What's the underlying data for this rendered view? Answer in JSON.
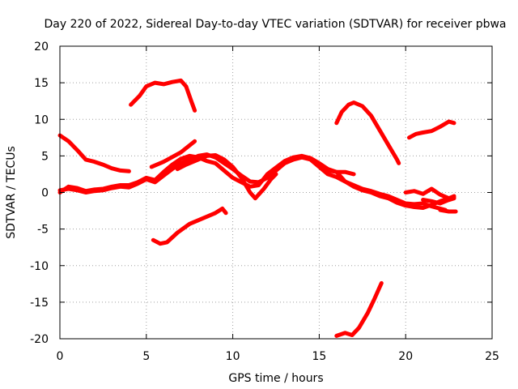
{
  "chart_data": {
    "type": "line",
    "title": "Day 220 of 2022, Sidereal Day-to-day VTEC variation (SDTVAR) for receiver pbwa",
    "xlabel": "GPS time / hours",
    "ylabel": "SDTVAR / TECUs",
    "xlim": [
      0,
      25
    ],
    "ylim": [
      -20,
      20
    ],
    "xticks": [
      0,
      5,
      10,
      15,
      20,
      25
    ],
    "yticks": [
      -20,
      -15,
      -10,
      -5,
      0,
      5,
      10,
      15,
      20
    ],
    "xtick_labels": [
      "0",
      "5",
      "10",
      "15",
      "20",
      "25"
    ],
    "ytick_labels": [
      "-20",
      "-15",
      "-10",
      "-5",
      "0",
      "5",
      "10",
      "15",
      "20"
    ],
    "grid": true,
    "color": "#ff0000",
    "series": [
      {
        "name": "trace-1",
        "points": [
          [
            0,
            7.8
          ],
          [
            0.5,
            7
          ],
          [
            1,
            5.8
          ],
          [
            1.5,
            4.5
          ],
          [
            2,
            4.2
          ],
          [
            2.5,
            3.8
          ],
          [
            3,
            3.3
          ],
          [
            3.5,
            3
          ],
          [
            4,
            2.9
          ]
        ]
      },
      {
        "name": "trace-2",
        "points": [
          [
            0,
            0.3
          ],
          [
            0.5,
            0.5
          ],
          [
            1,
            0.3
          ],
          [
            1.5,
            0
          ],
          [
            2,
            0.2
          ],
          [
            2.5,
            0.3
          ],
          [
            3,
            0.6
          ],
          [
            3.5,
            0.8
          ],
          [
            4,
            0.7
          ],
          [
            4.5,
            1.2
          ],
          [
            5,
            1.8
          ],
          [
            5.5,
            1.4
          ],
          [
            6,
            2.3
          ],
          [
            6.5,
            3.2
          ],
          [
            7,
            4
          ],
          [
            7.5,
            4.5
          ],
          [
            8,
            5
          ],
          [
            8.5,
            5.2
          ],
          [
            9,
            4.8
          ],
          [
            9.5,
            4
          ],
          [
            10,
            3.2
          ],
          [
            10.5,
            2.3
          ],
          [
            11,
            1.5
          ],
          [
            11.5,
            1.4
          ],
          [
            12,
            2
          ],
          [
            12.5,
            3
          ],
          [
            13,
            4
          ],
          [
            13.5,
            4.5
          ],
          [
            14,
            4.8
          ],
          [
            14.5,
            4.5
          ],
          [
            15,
            3.5
          ],
          [
            15.5,
            2.5
          ],
          [
            16,
            2.1
          ],
          [
            16.5,
            1.5
          ],
          [
            17,
            0.8
          ],
          [
            17.5,
            0.3
          ],
          [
            18,
            0
          ],
          [
            18.5,
            -0.5
          ],
          [
            19,
            -0.8
          ],
          [
            19.5,
            -1.4
          ],
          [
            20,
            -1.8
          ],
          [
            20.5,
            -2
          ],
          [
            21,
            -2.1
          ],
          [
            21.5,
            -1.7
          ],
          [
            22,
            -1.2
          ],
          [
            22.5,
            -0.8
          ],
          [
            22.8,
            -0.7
          ]
        ]
      },
      {
        "name": "trace-3",
        "points": [
          [
            0,
            0
          ],
          [
            0.5,
            0.8
          ],
          [
            1,
            0.6
          ],
          [
            1.5,
            0.2
          ],
          [
            2,
            0.4
          ],
          [
            2.5,
            0.5
          ],
          [
            3,
            0.8
          ],
          [
            3.5,
            1
          ],
          [
            4,
            1
          ],
          [
            4.5,
            1.4
          ],
          [
            5,
            2
          ],
          [
            5.5,
            1.7
          ],
          [
            6,
            2.8
          ],
          [
            6.5,
            3.8
          ],
          [
            7,
            4.6
          ],
          [
            7.5,
            5
          ],
          [
            8,
            4.8
          ],
          [
            8.5,
            4.3
          ],
          [
            9,
            4
          ],
          [
            9.5,
            3
          ],
          [
            10,
            2
          ],
          [
            10.5,
            1.4
          ],
          [
            11,
            0.8
          ],
          [
            11.5,
            1
          ],
          [
            12,
            2.5
          ],
          [
            12.5,
            3.4
          ],
          [
            13,
            4.3
          ],
          [
            13.5,
            4.8
          ],
          [
            14,
            5
          ],
          [
            14.5,
            4.7
          ],
          [
            15,
            4
          ],
          [
            15.5,
            3.2
          ],
          [
            16,
            2.8
          ],
          [
            16.5,
            2.8
          ],
          [
            17,
            2.5
          ]
        ]
      },
      {
        "name": "trace-4",
        "points": [
          [
            5.3,
            3.5
          ],
          [
            6,
            4.2
          ],
          [
            7,
            5.5
          ],
          [
            7.8,
            7
          ]
        ]
      },
      {
        "name": "trace-5",
        "points": [
          [
            6.8,
            3.2
          ],
          [
            7.3,
            3.8
          ],
          [
            8,
            4.5
          ],
          [
            8.5,
            5
          ],
          [
            9,
            5.1
          ],
          [
            9.5,
            4.5
          ],
          [
            10,
            3.5
          ],
          [
            10.5,
            2
          ],
          [
            11,
            0
          ],
          [
            11.3,
            -0.8
          ],
          [
            11.8,
            0.5
          ],
          [
            12.2,
            1.8
          ],
          [
            12.5,
            2.5
          ]
        ]
      },
      {
        "name": "trace-6",
        "points": [
          [
            4.1,
            12
          ],
          [
            4.6,
            13.2
          ],
          [
            5,
            14.5
          ],
          [
            5.5,
            15
          ],
          [
            6,
            14.8
          ],
          [
            6.5,
            15.1
          ],
          [
            7,
            15.3
          ],
          [
            7.3,
            14.5
          ],
          [
            7.6,
            12.5
          ],
          [
            7.8,
            11.2
          ]
        ]
      },
      {
        "name": "trace-7",
        "points": [
          [
            5.4,
            -6.5
          ],
          [
            5.8,
            -7
          ],
          [
            6.2,
            -6.8
          ],
          [
            6.8,
            -5.5
          ],
          [
            7.5,
            -4.3
          ],
          [
            8,
            -3.8
          ],
          [
            8.5,
            -3.3
          ],
          [
            9,
            -2.8
          ],
          [
            9.4,
            -2.2
          ],
          [
            9.6,
            -2.8
          ]
        ]
      },
      {
        "name": "trace-8",
        "points": [
          [
            16,
            9.5
          ],
          [
            16.3,
            11
          ],
          [
            16.7,
            12
          ],
          [
            17,
            12.3
          ],
          [
            17.5,
            11.8
          ],
          [
            18,
            10.5
          ],
          [
            18.5,
            8.5
          ],
          [
            19,
            6.5
          ],
          [
            19.5,
            4.5
          ],
          [
            19.6,
            4
          ]
        ]
      },
      {
        "name": "trace-9",
        "points": [
          [
            15.5,
            3
          ],
          [
            16,
            2.8
          ],
          [
            16.5,
            1.5
          ],
          [
            17,
            1
          ],
          [
            17.5,
            0.5
          ],
          [
            18,
            0.2
          ],
          [
            18.5,
            -0.2
          ],
          [
            19,
            -0.5
          ],
          [
            19.5,
            -1
          ],
          [
            20,
            -1.5
          ],
          [
            20.5,
            -1.6
          ],
          [
            21,
            -1.5
          ],
          [
            21.5,
            -1.9
          ],
          [
            22,
            -2.2
          ],
          [
            22.3,
            -2.4
          ]
        ]
      },
      {
        "name": "trace-10",
        "points": [
          [
            20,
            0
          ],
          [
            20.5,
            0.2
          ],
          [
            21,
            -0.2
          ],
          [
            21.5,
            0.5
          ],
          [
            22,
            -0.3
          ],
          [
            22.5,
            -0.8
          ],
          [
            22.8,
            -0.5
          ]
        ]
      },
      {
        "name": "trace-11",
        "points": [
          [
            20.2,
            7.5
          ],
          [
            20.6,
            8
          ],
          [
            21,
            8.2
          ],
          [
            21.5,
            8.4
          ],
          [
            22,
            9
          ],
          [
            22.5,
            9.7
          ],
          [
            22.8,
            9.5
          ]
        ]
      },
      {
        "name": "trace-12",
        "points": [
          [
            21,
            -1
          ],
          [
            21.5,
            -1.2
          ],
          [
            22,
            -1.5
          ],
          [
            22.4,
            -1.1
          ],
          [
            22.8,
            -0.8
          ]
        ]
      },
      {
        "name": "trace-13",
        "points": [
          [
            22,
            -2.4
          ],
          [
            22.5,
            -2.6
          ],
          [
            22.9,
            -2.6
          ]
        ]
      },
      {
        "name": "trace-14",
        "points": [
          [
            16,
            -19.6
          ],
          [
            16.5,
            -19.2
          ],
          [
            16.9,
            -19.5
          ],
          [
            17.3,
            -18.5
          ],
          [
            17.8,
            -16.5
          ],
          [
            18.2,
            -14.5
          ],
          [
            18.6,
            -12.4
          ]
        ]
      }
    ]
  }
}
